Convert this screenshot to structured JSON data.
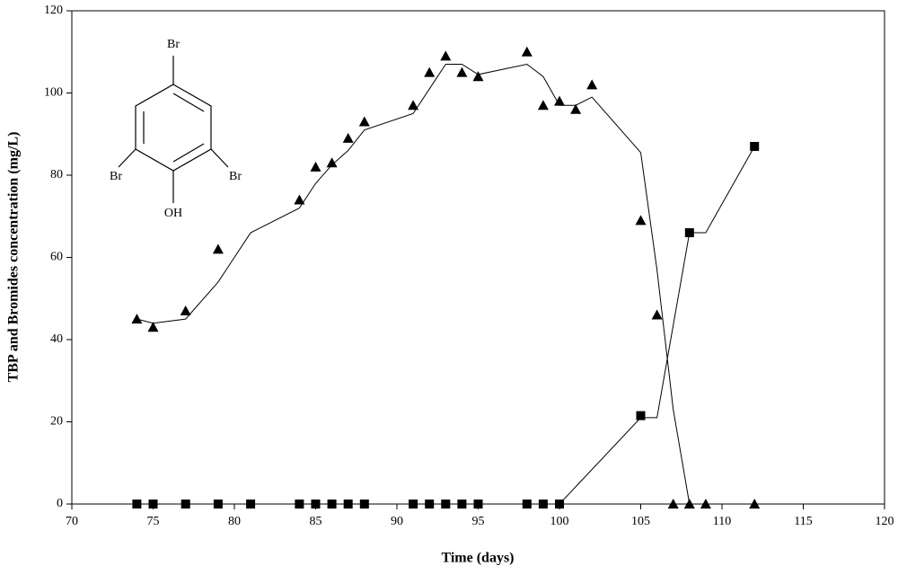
{
  "chart_data": {
    "type": "line",
    "xlabel": "Time (days)",
    "ylabel": "TBP and Bromides concentration (mg/L)",
    "xlim": [
      70,
      120
    ],
    "xticks": [
      70,
      75,
      80,
      85,
      90,
      95,
      100,
      105,
      110,
      115,
      120
    ],
    "ylim": [
      0,
      120
    ],
    "yticks": [
      0,
      20,
      40,
      60,
      80,
      100,
      120
    ],
    "grid": false,
    "structure_labels": [
      "Br",
      "Br",
      "Br",
      "OH"
    ],
    "series": [
      {
        "marker": "triangle",
        "color": "#000000",
        "line": false,
        "x": [
          74,
          75,
          77,
          79,
          84,
          85,
          86,
          87,
          88,
          91,
          92,
          93,
          94,
          95,
          98,
          99,
          100,
          101,
          102,
          105,
          106,
          107,
          108,
          109,
          112
        ],
        "values": [
          45,
          43,
          47,
          62,
          74,
          82,
          83,
          89,
          93,
          97,
          105,
          109,
          105,
          104,
          110,
          97,
          98,
          96,
          102,
          69,
          46,
          0,
          0,
          0,
          0
        ]
      },
      {
        "marker": "none",
        "color": "#000000",
        "line": true,
        "x": [
          74,
          75,
          77,
          79,
          81,
          84,
          85,
          86,
          87,
          88,
          91,
          92,
          93,
          94,
          95,
          98,
          99,
          100,
          101,
          102,
          105,
          106,
          107,
          108
        ],
        "values": [
          45,
          44,
          45,
          54,
          66,
          72,
          78,
          82.5,
          86,
          91,
          95,
          101,
          107,
          107,
          104.5,
          107,
          104,
          97,
          97,
          99,
          85.5,
          57,
          23,
          0
        ]
      },
      {
        "marker": "square",
        "color": "#000000",
        "line": false,
        "x": [
          74,
          75,
          77,
          79,
          81,
          84,
          85,
          86,
          87,
          88,
          91,
          92,
          93,
          94,
          95,
          98,
          99,
          100,
          105,
          108,
          112
        ],
        "values": [
          0,
          0,
          0,
          0,
          0,
          0,
          0,
          0,
          0,
          0,
          0,
          0,
          0,
          0,
          0,
          0,
          0,
          0,
          21.5,
          66,
          87
        ]
      },
      {
        "marker": "none",
        "color": "#000000",
        "line": true,
        "x": [
          74,
          100,
          105,
          106,
          108,
          109,
          112
        ],
        "values": [
          0,
          0,
          21,
          21,
          66,
          66,
          87
        ]
      }
    ]
  }
}
